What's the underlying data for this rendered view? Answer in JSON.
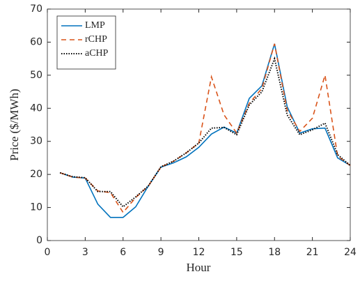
{
  "chart_data": {
    "type": "line",
    "x_label": "Hour",
    "y_label": "Price ($/MWh)",
    "x": [
      1,
      2,
      3,
      4,
      5,
      6,
      7,
      8,
      9,
      10,
      11,
      12,
      13,
      14,
      15,
      16,
      17,
      18,
      19,
      20,
      21,
      22,
      23,
      24
    ],
    "series": [
      {
        "name": "LMP",
        "color": "#0072bd",
        "dash": "solid",
        "values": [
          20.5,
          19.2,
          18.9,
          11,
          7,
          7,
          10.2,
          16.5,
          22.2,
          23.5,
          25.3,
          28.2,
          32.2,
          34.3,
          32.5,
          43,
          46.8,
          59.5,
          40.5,
          32.5,
          33.8,
          34,
          25,
          22.7
        ]
      },
      {
        "name": "rCHP",
        "color": "#d95319",
        "dash": "dashed",
        "values": [
          20.5,
          19.2,
          18.9,
          15,
          14.5,
          8.5,
          13,
          16.5,
          22.2,
          24,
          26.5,
          29.5,
          49.5,
          38,
          32.5,
          41.5,
          46,
          59.5,
          39.5,
          33,
          37,
          50,
          25.5,
          22.7
        ]
      },
      {
        "name": "aCHP",
        "color": "#000000",
        "dash": "dotted",
        "values": [
          20.5,
          19.3,
          19,
          14.8,
          14.8,
          10.2,
          13.2,
          16.5,
          22.3,
          24,
          26.5,
          29.5,
          34,
          34.2,
          32,
          41,
          45,
          55,
          38,
          32,
          33.5,
          35.5,
          26,
          22.7
        ]
      }
    ],
    "xlim": [
      0,
      24
    ],
    "xticks": [
      0,
      3,
      6,
      9,
      12,
      15,
      18,
      21,
      24
    ],
    "ylim": [
      0,
      70
    ],
    "yticks": [
      0,
      10,
      20,
      30,
      40,
      50,
      60,
      70
    ],
    "legend": "northwest"
  }
}
